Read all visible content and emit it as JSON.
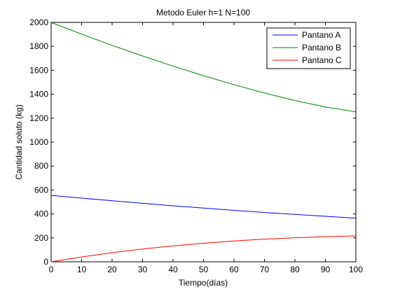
{
  "chart_data": {
    "type": "line",
    "title": "Metodo Euler h=1 N=100",
    "xlabel": "Tiempo(días)",
    "ylabel": "Cantidad soluto (kg)",
    "xlim": [
      0,
      100
    ],
    "ylim": [
      0,
      2000
    ],
    "xticks": [
      0,
      10,
      20,
      30,
      40,
      50,
      60,
      70,
      80,
      90,
      100
    ],
    "yticks": [
      0,
      200,
      400,
      600,
      800,
      1000,
      1200,
      1400,
      1600,
      1800,
      2000
    ],
    "grid": false,
    "legend_position": "top-right",
    "x": [
      0,
      10,
      20,
      30,
      40,
      50,
      60,
      70,
      80,
      90,
      100
    ],
    "series": [
      {
        "name": "Pantano A",
        "color": "#0000ff",
        "values": [
          555,
          532,
          510,
          489,
          468,
          449,
          430,
          412,
          396,
          380,
          365
        ]
      },
      {
        "name": "Pantano B",
        "color": "#008000",
        "values": [
          2000,
          1902,
          1808,
          1720,
          1635,
          1555,
          1480,
          1410,
          1347,
          1293,
          1253
        ]
      },
      {
        "name": "Pantano C",
        "color": "#ff0000",
        "values": [
          0,
          40,
          76,
          107,
          133,
          155,
          174,
          189,
          201,
          210,
          216
        ]
      }
    ]
  }
}
